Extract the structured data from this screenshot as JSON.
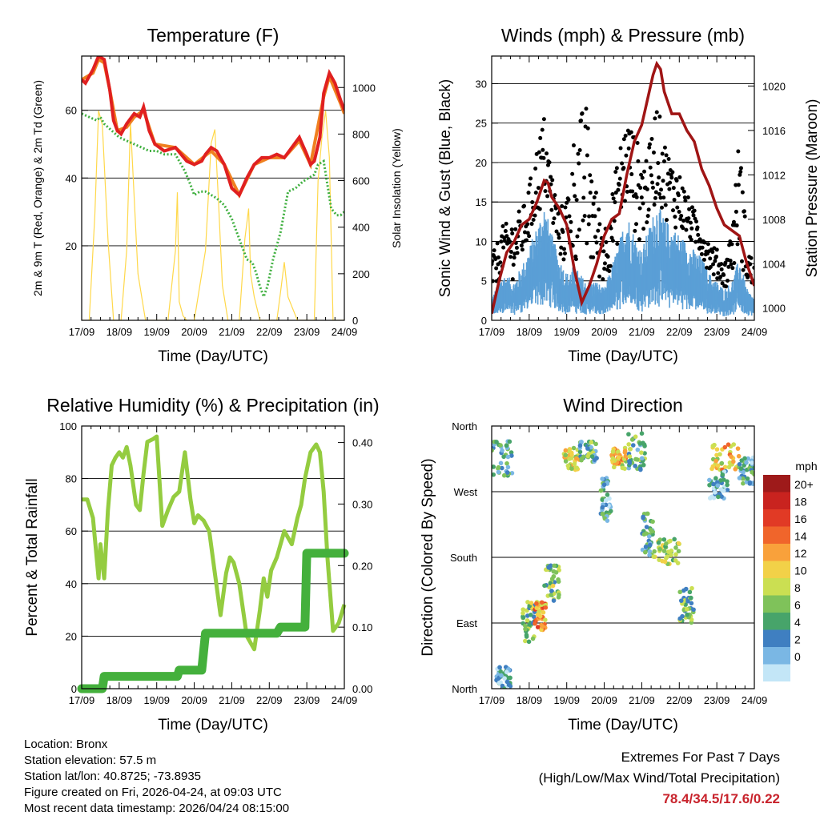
{
  "info": {
    "location": "Location: Bronx",
    "elevation": "Station elevation: 57.5 m",
    "latlon": "Station lat/lon: 40.8725; -73.8935",
    "created": "Figure created on Fri, 2026-04-24, at 09:03 UTC",
    "recent": "Most recent data timestamp: 2026/04/24 08:15:00"
  },
  "extremes": {
    "line1": "Extremes For Past 7 Days",
    "line2": "(High/Low/Max Wind/Total Precipitation)",
    "values": "78.4/34.5/17.6/0.22"
  },
  "colors": {
    "temp2m": "#e02020",
    "temp9m": "#f08020",
    "dewpoint": "#40b040",
    "solar": "#ffd84a",
    "sonic": "#5a9fd6",
    "gust": "#000000",
    "pressure": "#a01515",
    "rh": "#94cc40",
    "precip": "#44b03c"
  },
  "chart_data": [
    {
      "type": "line",
      "title": "Temperature (F)",
      "xlabel": "Time (Day/UTC)",
      "ylabel": "2m & 9m T (Red, Orange) & 2m Td (Green)",
      "ylabel_right": "Solar Insolation (Yellow)",
      "categories": [
        "17/09",
        "18/09",
        "19/09",
        "20/09",
        "21/09",
        "22/09",
        "23/09",
        "24/09"
      ],
      "xlim": [
        0,
        7
      ],
      "ylim": [
        -2,
        76
      ],
      "ylim_right": [
        0,
        1135
      ],
      "yticks": [
        20,
        40,
        60
      ],
      "yticks_right": [
        0,
        200,
        400,
        600,
        800,
        1000
      ],
      "series": [
        {
          "name": "2m T",
          "axis": "left",
          "x": [
            0,
            0.1,
            0.3,
            0.45,
            0.6,
            0.75,
            0.85,
            0.95,
            1.05,
            1.2,
            1.4,
            1.55,
            1.65,
            1.8,
            1.95,
            2.2,
            2.5,
            2.8,
            3.0,
            3.2,
            3.3,
            3.45,
            3.6,
            3.8,
            4.0,
            4.2,
            4.4,
            4.6,
            4.8,
            5.0,
            5.2,
            5.4,
            5.6,
            5.8,
            6.0,
            6.1,
            6.2,
            6.35,
            6.45,
            6.6,
            6.75,
            6.9,
            7.0
          ],
          "values": [
            69,
            68,
            72,
            76,
            75,
            66,
            57,
            54,
            53,
            56,
            59,
            58,
            61,
            54,
            50,
            48,
            49,
            45,
            44,
            45,
            47,
            49,
            48,
            44,
            37,
            35,
            40,
            44,
            46,
            46,
            47,
            46,
            49,
            52,
            47,
            44,
            45,
            52,
            65,
            71,
            68,
            63,
            60
          ]
        },
        {
          "name": "9m T",
          "axis": "left",
          "x": [
            0,
            0.3,
            0.45,
            0.6,
            0.75,
            0.95,
            1.2,
            1.4,
            1.65,
            1.95,
            2.5,
            3.0,
            3.45,
            3.8,
            4.2,
            4.6,
            5.0,
            5.4,
            5.8,
            6.1,
            6.45,
            6.6,
            6.9,
            7.0
          ],
          "values": [
            69,
            71,
            75,
            74,
            66,
            54,
            55,
            58,
            60,
            50,
            49,
            44,
            48,
            44,
            35,
            44,
            46,
            46,
            51,
            44,
            64,
            70,
            62,
            59
          ]
        },
        {
          "name": "2m Td",
          "axis": "left",
          "x": [
            0,
            0.2,
            0.4,
            0.5,
            0.6,
            0.8,
            1.0,
            1.2,
            1.4,
            1.6,
            1.8,
            2.0,
            2.2,
            2.5,
            2.6,
            2.75,
            2.9,
            3.0,
            3.15,
            3.3,
            3.45,
            3.6,
            3.8,
            3.9,
            4.0,
            4.2,
            4.4,
            4.55,
            4.65,
            4.75,
            4.85,
            4.95,
            5.1,
            5.3,
            5.5,
            5.7,
            5.9,
            6.05,
            6.2,
            6.3,
            6.45,
            6.55,
            6.65,
            6.8,
            6.9,
            7.0
          ],
          "values": [
            59,
            58,
            57,
            58,
            56,
            54,
            52,
            51,
            50,
            49,
            48,
            48,
            47,
            47,
            45,
            42,
            38,
            35,
            36,
            36,
            35,
            34,
            32,
            30,
            28,
            22,
            16,
            15,
            12,
            8,
            5,
            8,
            16,
            24,
            36,
            37,
            39,
            40,
            41,
            44,
            45,
            38,
            31,
            29,
            29,
            30
          ]
        },
        {
          "name": "Solar Insolation",
          "axis": "right",
          "color_key": "solar",
          "x": [
            0,
            0.2,
            0.35,
            0.45,
            0.55,
            0.7,
            0.85,
            1.05,
            1.2,
            1.3,
            1.5,
            1.7,
            1.85,
            2.0,
            2.3,
            2.5,
            2.55,
            2.6,
            2.7,
            2.8,
            3.0,
            3.3,
            3.45,
            3.55,
            3.65,
            3.75,
            3.9,
            4.2,
            4.35,
            4.45,
            4.5,
            4.6,
            4.75,
            4.95,
            5.2,
            5.3,
            5.4,
            5.5,
            5.6,
            5.75,
            5.95,
            6.2,
            6.3,
            6.4,
            6.5,
            6.6,
            6.7,
            6.9,
            7.0
          ],
          "values": [
            0,
            0,
            450,
            900,
            840,
            350,
            0,
            0,
            300,
            850,
            200,
            0,
            0,
            0,
            0,
            300,
            550,
            80,
            20,
            0,
            0,
            300,
            760,
            820,
            500,
            150,
            0,
            0,
            350,
            480,
            200,
            100,
            0,
            0,
            0,
            120,
            250,
            100,
            60,
            0,
            0,
            0,
            600,
            780,
            900,
            700,
            0,
            0,
            0
          ]
        }
      ]
    },
    {
      "type": "scatter",
      "title": "Winds (mph) & Pressure (mb)",
      "xlabel": "Time (Day/UTC)",
      "ylabel": "Sonic Wind & Gust (Blue, Black)",
      "ylabel_right": "Station Pressure (Maroon)",
      "categories": [
        "17/09",
        "18/09",
        "19/09",
        "20/09",
        "21/09",
        "22/09",
        "23/09",
        "24/09"
      ],
      "xlim": [
        0,
        7
      ],
      "ylim": [
        0,
        33.5
      ],
      "ylim_right": [
        998.9,
        1022.7
      ],
      "yticks": [
        0,
        5,
        10,
        15,
        20,
        25,
        30
      ],
      "yticks_right": [
        1000,
        1004,
        1008,
        1012,
        1016,
        1020
      ],
      "series": [
        {
          "name": "Sonic Wind (envelope)",
          "axis": "left",
          "x": [
            0,
            0.3,
            0.6,
            0.9,
            1.2,
            1.4,
            1.6,
            1.8,
            2.0,
            2.2,
            2.5,
            2.8,
            3.0,
            3.2,
            3.4,
            3.6,
            3.8,
            4.0,
            4.2,
            4.4,
            4.6,
            4.8,
            5.0,
            5.2,
            5.4,
            5.6,
            5.8,
            6.0,
            6.2,
            6.4,
            6.6,
            6.8,
            7.0
          ],
          "values": [
            3,
            6,
            5,
            8,
            12,
            15,
            11,
            8,
            6,
            7,
            5,
            5,
            4,
            7,
            10,
            14,
            11,
            9,
            12,
            15,
            13,
            12,
            11,
            10,
            9,
            8,
            6,
            5,
            4,
            5,
            8,
            4,
            3
          ]
        },
        {
          "name": "Gust (envelope)",
          "axis": "left",
          "x": [
            0,
            0.3,
            0.6,
            0.9,
            1.2,
            1.4,
            1.6,
            1.8,
            2.0,
            2.2,
            2.5,
            2.8,
            3.0,
            3.2,
            3.4,
            3.6,
            3.8,
            4.0,
            4.2,
            4.4,
            4.6,
            4.8,
            5.0,
            5.2,
            5.4,
            5.6,
            5.8,
            6.0,
            6.2,
            6.4,
            6.6,
            6.8,
            7.0
          ],
          "values": [
            8,
            12,
            13,
            15,
            22,
            26,
            19,
            14,
            16,
            24,
            28,
            16,
            12,
            16,
            22,
            26,
            24,
            21,
            22,
            28,
            23,
            20,
            19,
            16,
            14,
            12,
            10,
            9,
            7,
            12,
            24,
            10,
            7
          ]
        },
        {
          "name": "Station Pressure",
          "axis": "right",
          "x": [
            0,
            0.2,
            0.4,
            0.6,
            0.8,
            1.0,
            1.2,
            1.4,
            1.5,
            1.6,
            1.8,
            2.0,
            2.2,
            2.4,
            2.6,
            2.8,
            3.0,
            3.2,
            3.4,
            3.6,
            3.8,
            4.0,
            4.1,
            4.2,
            4.3,
            4.4,
            4.5,
            4.6,
            4.8,
            5.0,
            5.2,
            5.4,
            5.6,
            5.8,
            6.0,
            6.2,
            6.4,
            6.6,
            6.8,
            7.0
          ],
          "values": [
            999.5,
            1002.5,
            1005,
            1006,
            1007.5,
            1008,
            1009.5,
            1011.5,
            1011.3,
            1010,
            1009,
            1007.5,
            1003.5,
            1000.5,
            1002,
            1004,
            1006.5,
            1008,
            1008.5,
            1012,
            1015,
            1016.5,
            1018,
            1019.5,
            1021,
            1022,
            1021.5,
            1019.5,
            1017.5,
            1017.5,
            1016,
            1015,
            1012.5,
            1011,
            1009,
            1007.5,
            1007,
            1006.5,
            1004,
            1002
          ]
        }
      ]
    },
    {
      "type": "line",
      "title": "Relative Humidity (%) & Precipitation (in)",
      "xlabel": "Time (Day/UTC)",
      "ylabel": "Percent & Total Rainfall",
      "categories": [
        "17/09",
        "18/09",
        "19/09",
        "20/09",
        "21/09",
        "22/09",
        "23/09",
        "24/09"
      ],
      "xlim": [
        0,
        7
      ],
      "ylim": [
        0,
        100
      ],
      "ylim_right": [
        0,
        0.4268
      ],
      "yticks": [
        0,
        20,
        40,
        60,
        80,
        100
      ],
      "yticks_right": [
        0.0,
        0.1,
        0.2,
        0.3,
        0.4
      ],
      "series": [
        {
          "name": "Relative Humidity",
          "axis": "left",
          "x": [
            0,
            0.15,
            0.3,
            0.45,
            0.5,
            0.6,
            0.7,
            0.8,
            0.9,
            1.0,
            1.1,
            1.2,
            1.3,
            1.45,
            1.55,
            1.65,
            1.75,
            1.9,
            2.0,
            2.15,
            2.3,
            2.45,
            2.6,
            2.75,
            2.9,
            3.0,
            3.1,
            3.25,
            3.4,
            3.55,
            3.7,
            3.85,
            3.95,
            4.05,
            4.2,
            4.4,
            4.6,
            4.75,
            4.85,
            4.95,
            5.05,
            5.2,
            5.4,
            5.6,
            5.75,
            5.85,
            5.95,
            6.1,
            6.25,
            6.35,
            6.45,
            6.55,
            6.7,
            6.85,
            7.0
          ],
          "values": [
            72,
            72,
            65,
            42,
            55,
            42,
            68,
            85,
            88,
            90,
            88,
            92,
            85,
            70,
            68,
            82,
            94,
            95,
            96,
            62,
            68,
            73,
            75,
            90,
            72,
            63,
            66,
            64,
            60,
            44,
            28,
            44,
            50,
            48,
            40,
            20,
            15,
            30,
            42,
            35,
            45,
            50,
            60,
            55,
            65,
            70,
            80,
            90,
            93,
            90,
            75,
            50,
            22,
            25,
            32
          ]
        },
        {
          "name": "Total Precipitation",
          "axis": "right",
          "step": true,
          "x": [
            0,
            0.55,
            0.6,
            2.55,
            2.6,
            3.2,
            3.3,
            5.2,
            5.3,
            5.95,
            6.0,
            7.0
          ],
          "values": [
            0.0,
            0.0,
            0.02,
            0.02,
            0.03,
            0.03,
            0.09,
            0.09,
            0.1,
            0.1,
            0.22,
            0.22
          ]
        }
      ]
    },
    {
      "type": "scatter",
      "title": "Wind Direction",
      "xlabel": "Time (Day/UTC)",
      "ylabel": "Direction (Colored By Speed)",
      "categories": [
        "17/09",
        "18/09",
        "19/09",
        "20/09",
        "21/09",
        "22/09",
        "23/09",
        "24/09"
      ],
      "yticks": [
        "North",
        "East",
        "South",
        "West",
        "North"
      ],
      "xlim": [
        0,
        7
      ],
      "ylim": [
        0,
        360
      ],
      "colorbar": {
        "title": "mph",
        "labels": [
          "20+",
          "18",
          "16",
          "14",
          "12",
          "10",
          "8",
          "6",
          "4",
          "2",
          "0"
        ],
        "colors": [
          "#9e1a1a",
          "#c9231f",
          "#e13a25",
          "#f0652b",
          "#f9a13b",
          "#f2d148",
          "#cbdf52",
          "#7fc25a",
          "#47a46a",
          "#3f7fc1",
          "#7ab7e4",
          "#c3e6f7"
        ]
      },
      "clusters": [
        {
          "x": [
            0.0,
            0.55
          ],
          "dir": [
            290,
            340
          ],
          "speed": 5
        },
        {
          "x": [
            0.1,
            0.5
          ],
          "dir": [
            0,
            30
          ],
          "speed": 3
        },
        {
          "x": [
            0.8,
            1.15
          ],
          "dir": [
            60,
            120
          ],
          "speed": 8
        },
        {
          "x": [
            1.15,
            1.45
          ],
          "dir": [
            80,
            120
          ],
          "speed": 14
        },
        {
          "x": [
            1.4,
            1.8
          ],
          "dir": [
            120,
            170
          ],
          "speed": 8
        },
        {
          "x": [
            1.9,
            2.35
          ],
          "dir": [
            300,
            330
          ],
          "speed": 11
        },
        {
          "x": [
            2.35,
            2.8
          ],
          "dir": [
            310,
            340
          ],
          "speed": 6
        },
        {
          "x": [
            2.9,
            3.2
          ],
          "dir": [
            230,
            290
          ],
          "speed": 4
        },
        {
          "x": [
            3.2,
            3.6
          ],
          "dir": [
            300,
            330
          ],
          "speed": 12
        },
        {
          "x": [
            3.6,
            4.1
          ],
          "dir": [
            300,
            350
          ],
          "speed": 6
        },
        {
          "x": [
            4.0,
            4.3
          ],
          "dir": [
            180,
            240
          ],
          "speed": 5
        },
        {
          "x": [
            4.3,
            5.0
          ],
          "dir": [
            170,
            205
          ],
          "speed": 9
        },
        {
          "x": [
            5.0,
            5.4
          ],
          "dir": [
            90,
            140
          ],
          "speed": 7
        },
        {
          "x": [
            5.85,
            6.6
          ],
          "dir": [
            300,
            335
          ],
          "speed": 12
        },
        {
          "x": [
            5.8,
            6.3
          ],
          "dir": [
            260,
            300
          ],
          "speed": 3
        },
        {
          "x": [
            6.6,
            7.0
          ],
          "dir": [
            280,
            320
          ],
          "speed": 4
        }
      ]
    }
  ]
}
